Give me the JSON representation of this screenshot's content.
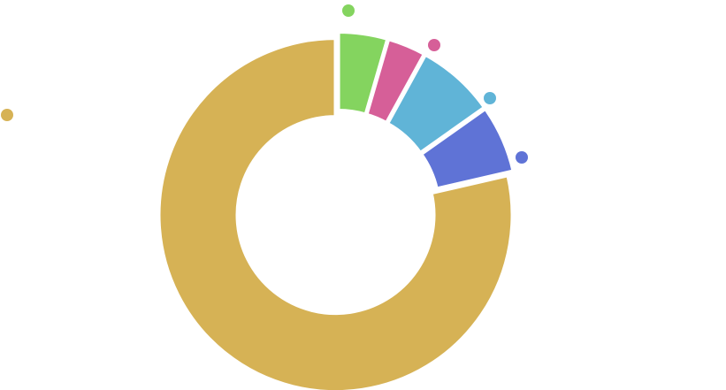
{
  "chart_data": {
    "type": "pie",
    "variant": "donut",
    "title": "",
    "legend": "scattered-dots",
    "slices": [
      {
        "value": 4.5,
        "color": "#84d45f"
      },
      {
        "value": 3.5,
        "color": "#d65f98"
      },
      {
        "value": 7.2,
        "color": "#60b4d7"
      },
      {
        "value": 6.2,
        "color": "#5f73d6"
      },
      {
        "value": 78.6,
        "color": "#d6b255"
      }
    ]
  }
}
